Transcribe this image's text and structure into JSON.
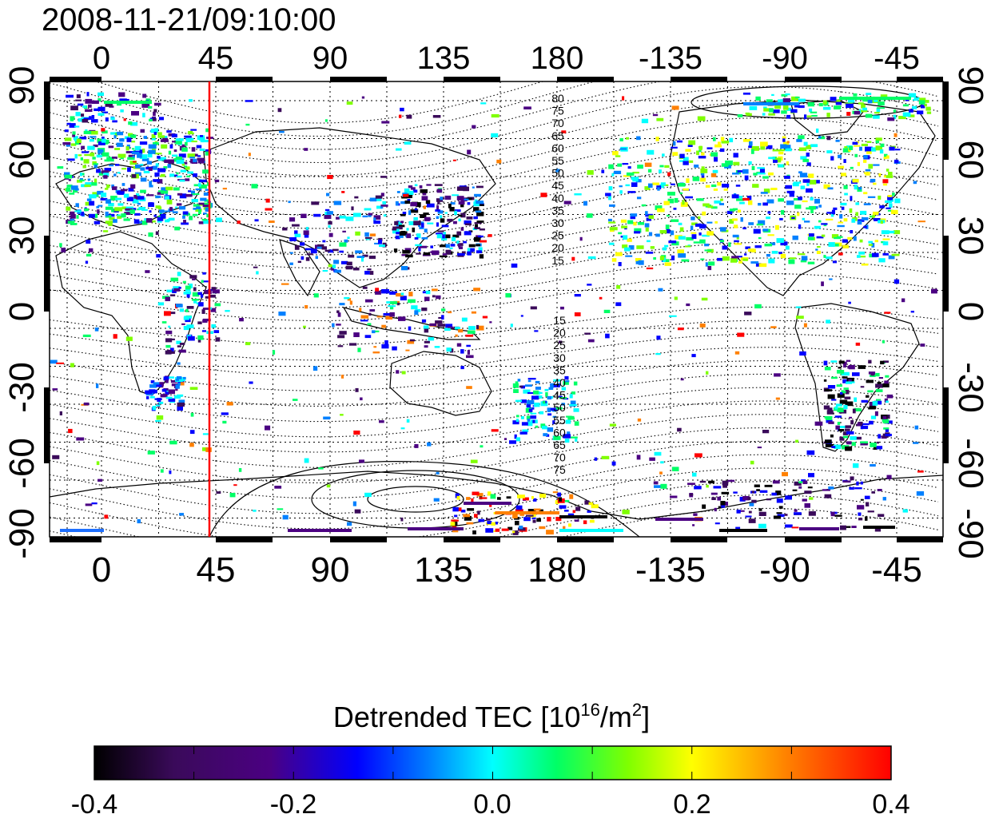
{
  "title": "2008-11-21/09:10:00",
  "x_tick_labels": [
    "0",
    "45",
    "90",
    "135",
    "180",
    "-135",
    "-90",
    "-45"
  ],
  "y_tick_labels": [
    "90",
    "60",
    "30",
    "0",
    "-30",
    "-60",
    "-90"
  ],
  "contour_labels_north": [
    "80",
    "75",
    "70",
    "65",
    "60",
    "55",
    "50",
    "45",
    "40",
    "35",
    "30",
    "25",
    "20",
    "15"
  ],
  "contour_labels_south": [
    "15",
    "20",
    "25",
    "30",
    "35",
    "40",
    "45",
    "50",
    "55",
    "60",
    "65",
    "70",
    "75"
  ],
  "marker_longitude": "45",
  "marker_color": "#ff0000",
  "colorbar": {
    "title_main": "Detrended TEC  [10",
    "title_exp": "16",
    "title_unit": "/m",
    "title_exp2": "2",
    "title_close": "]",
    "tick_labels": [
      "-0.4",
      "-0.2",
      "0.0",
      "0.2",
      "0.4"
    ],
    "range": [
      -0.4,
      0.4
    ],
    "colors": [
      "#000000",
      "#3a0a5a",
      "#4b0082",
      "#0000ff",
      "#0080ff",
      "#00ffff",
      "#00ff66",
      "#7fff00",
      "#ffff00",
      "#ff8000",
      "#ff0000"
    ]
  }
}
